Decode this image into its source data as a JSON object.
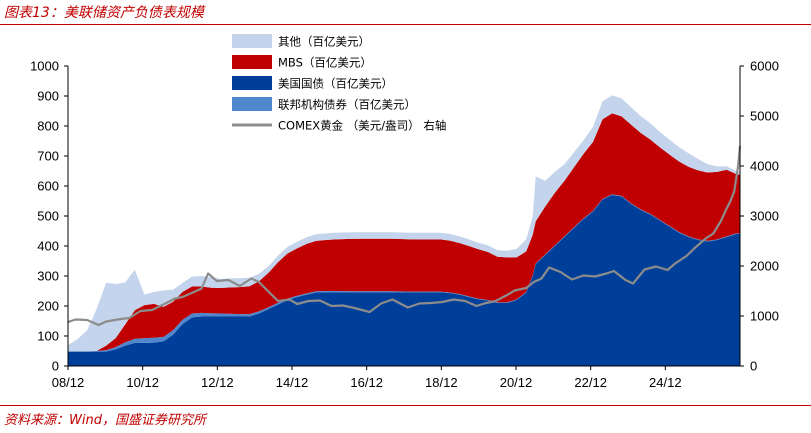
{
  "header": {
    "title": "图表13：美联储资产负债表规模"
  },
  "footer": {
    "source": "资料来源：Wind，国盛证券研究所"
  },
  "colors": {
    "other": "#c3d4ec",
    "mbs": "#c00000",
    "treasury": "#003f99",
    "agency": "#4f86cc",
    "gold": "#8c8c8c",
    "rule": "#c00000"
  },
  "chart_data": {
    "type": "area",
    "stacked": true,
    "x_tick_labels": [
      "08/12",
      "10/12",
      "12/12",
      "14/12",
      "16/12",
      "18/12",
      "20/12",
      "22/12",
      "24/12"
    ],
    "x_range": [
      2008.0,
      2025.6
    ],
    "left_axis": {
      "ylim": [
        0,
        1000
      ],
      "ticks": [
        0,
        100,
        200,
        300,
        400,
        500,
        600,
        700,
        800,
        900,
        1000
      ]
    },
    "right_axis": {
      "ylim": [
        0,
        6000
      ],
      "ticks": [
        0,
        1000,
        2000,
        3000,
        4000,
        5000,
        6000
      ]
    },
    "legend": {
      "placement": "top-left",
      "entries": [
        {
          "key": "other",
          "label": "其他（百亿美元）"
        },
        {
          "key": "mbs",
          "label": "MBS（百亿美元）"
        },
        {
          "key": "treasury",
          "label": "美国国债（百亿美元）"
        },
        {
          "key": "agency",
          "label": "联邦机构债券（百亿美元）"
        },
        {
          "key": "gold",
          "label": "COMEX黄金 （美元/盎司） 右轴"
        }
      ]
    },
    "x": [
      2008.0,
      2008.25,
      2008.5,
      2008.75,
      2009.0,
      2009.25,
      2009.5,
      2009.75,
      2010.0,
      2010.25,
      2010.5,
      2010.75,
      2011.0,
      2011.25,
      2011.5,
      2011.75,
      2012.0,
      2012.25,
      2012.5,
      2012.75,
      2013.0,
      2013.25,
      2013.5,
      2013.75,
      2014.0,
      2014.25,
      2014.5,
      2014.75,
      2015.0,
      2015.5,
      2016.0,
      2016.5,
      2017.0,
      2017.5,
      2017.75,
      2018.0,
      2018.25,
      2018.5,
      2018.75,
      2019.0,
      2019.25,
      2019.5,
      2019.75,
      2020.0,
      2020.17,
      2020.25,
      2020.5,
      2020.75,
      2021.0,
      2021.25,
      2021.5,
      2021.75,
      2022.0,
      2022.25,
      2022.5,
      2022.75,
      2023.0,
      2023.25,
      2023.5,
      2023.75,
      2024.0,
      2024.25,
      2024.5,
      2024.75,
      2025.0,
      2025.25,
      2025.5,
      2025.6
    ],
    "series": [
      {
        "key": "treasury",
        "name": "美国国债（百亿美元）",
        "values": [
          48,
          48,
          48,
          48,
          48,
          56,
          68,
          77,
          77,
          78,
          82,
          104,
          140,
          162,
          165,
          165,
          165,
          165,
          165,
          165,
          175,
          190,
          205,
          220,
          230,
          238,
          245,
          246,
          246,
          246,
          246,
          246,
          246,
          246,
          246,
          243,
          238,
          230,
          222,
          218,
          210,
          210,
          220,
          245,
          300,
          340,
          370,
          400,
          430,
          460,
          490,
          515,
          555,
          570,
          565,
          540,
          520,
          505,
          485,
          465,
          445,
          430,
          420,
          415,
          420,
          430,
          440,
          440
        ]
      },
      {
        "key": "agency",
        "name": "联邦机构债券（百亿美元）",
        "values": [
          1,
          1,
          1,
          2,
          5,
          7,
          11,
          14,
          16,
          16,
          15,
          15,
          14,
          13,
          12,
          11,
          10,
          9,
          8,
          8,
          7,
          6,
          6,
          5,
          4,
          4,
          4,
          4,
          4,
          3,
          3,
          3,
          2,
          2,
          2,
          2,
          2,
          2,
          2,
          2,
          2,
          2,
          2,
          2,
          2,
          2,
          2,
          2,
          2,
          2,
          2,
          2,
          2,
          2,
          2,
          2,
          2,
          2,
          2,
          2,
          2,
          2,
          2,
          2,
          2,
          2,
          2,
          2
        ]
      },
      {
        "key": "mbs",
        "name": "MBS（百亿美元）",
        "values": [
          0,
          0,
          0,
          0,
          15,
          30,
          60,
          95,
          110,
          113,
          100,
          95,
          93,
          90,
          88,
          85,
          85,
          88,
          90,
          93,
          100,
          115,
          135,
          150,
          158,
          165,
          168,
          170,
          172,
          175,
          175,
          175,
          174,
          174,
          174,
          173,
          170,
          168,
          165,
          160,
          152,
          150,
          140,
          135,
          135,
          140,
          160,
          175,
          185,
          200,
          215,
          230,
          265,
          270,
          265,
          262,
          255,
          248,
          242,
          238,
          235,
          232,
          230,
          228,
          225,
          222,
          198,
          195
        ]
      },
      {
        "key": "other",
        "name": "其他（百亿美元）",
        "values": [
          21,
          40,
          70,
          140,
          210,
          180,
          140,
          135,
          35,
          40,
          55,
          40,
          30,
          33,
          35,
          35,
          30,
          30,
          30,
          28,
          25,
          22,
          22,
          22,
          22,
          22,
          22,
          22,
          22,
          22,
          22,
          22,
          22,
          22,
          22,
          22,
          22,
          22,
          22,
          22,
          22,
          22,
          28,
          40,
          60,
          150,
          85,
          70,
          55,
          50,
          45,
          50,
          60,
          60,
          60,
          58,
          56,
          54,
          52,
          50,
          48,
          45,
          38,
          28,
          18,
          12,
          10,
          8
        ]
      },
      {
        "key": "gold",
        "name": "COMEX黄金 （美元/盎司） 右轴",
        "axis": "right",
        "x": [
          2008.0,
          2008.2,
          2008.5,
          2008.8,
          2009.0,
          2009.3,
          2009.6,
          2009.9,
          2010.2,
          2010.5,
          2010.8,
          2011.0,
          2011.3,
          2011.5,
          2011.67,
          2011.9,
          2012.2,
          2012.5,
          2012.8,
          2013.0,
          2013.3,
          2013.5,
          2013.8,
          2014.0,
          2014.3,
          2014.6,
          2014.9,
          2015.2,
          2015.5,
          2015.9,
          2016.2,
          2016.5,
          2016.9,
          2017.2,
          2017.5,
          2017.8,
          2018.1,
          2018.4,
          2018.7,
          2018.9,
          2019.2,
          2019.5,
          2019.7,
          2020.0,
          2020.2,
          2020.4,
          2020.6,
          2020.9,
          2021.2,
          2021.5,
          2021.8,
          2022.1,
          2022.3,
          2022.6,
          2022.8,
          2023.1,
          2023.4,
          2023.7,
          2023.9,
          2024.2,
          2024.4,
          2024.7,
          2024.9,
          2025.1,
          2025.25,
          2025.35,
          2025.45,
          2025.55,
          2025.6
        ],
        "values": [
          880,
          930,
          920,
          820,
          890,
          930,
          960,
          1100,
          1120,
          1230,
          1350,
          1380,
          1480,
          1550,
          1850,
          1700,
          1720,
          1600,
          1750,
          1680,
          1450,
          1300,
          1330,
          1240,
          1300,
          1310,
          1200,
          1210,
          1160,
          1080,
          1250,
          1330,
          1170,
          1250,
          1260,
          1280,
          1330,
          1300,
          1200,
          1250,
          1300,
          1420,
          1510,
          1560,
          1680,
          1750,
          1970,
          1880,
          1730,
          1810,
          1790,
          1850,
          1900,
          1720,
          1650,
          1930,
          1990,
          1920,
          2050,
          2200,
          2350,
          2550,
          2650,
          2900,
          3150,
          3300,
          3500,
          4000,
          4400
        ]
      }
    ]
  }
}
